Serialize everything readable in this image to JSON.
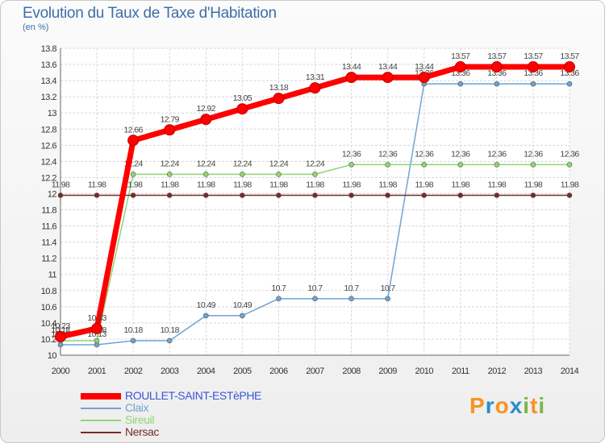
{
  "header": {
    "title": "Evolution du Taux de Taxe d'Habitation",
    "subtitle": "(en %)"
  },
  "logo": {
    "text": "Proxiti",
    "colors": [
      "#f7941d",
      "#2b8ec7",
      "#f7941d",
      "#2b8ec7",
      "#7ab648",
      "#f7941d",
      "#7ab648"
    ]
  },
  "chart_data": {
    "type": "line",
    "title": "Evolution du Taux de Taxe d'Habitation",
    "ylabel": "(en %)",
    "xlabel": "",
    "x": [
      2000,
      2001,
      2002,
      2003,
      2004,
      2005,
      2006,
      2007,
      2008,
      2009,
      2010,
      2011,
      2012,
      2013,
      2014
    ],
    "ylim": [
      10,
      13.8
    ],
    "yticks": [
      10,
      10.2,
      10.4,
      10.6,
      10.8,
      11,
      11.2,
      11.4,
      11.6,
      11.8,
      12,
      12.2,
      12.4,
      12.6,
      12.8,
      13,
      13.2,
      13.4,
      13.6,
      13.8
    ],
    "grid": true,
    "legend_position": "bottom-left",
    "series": [
      {
        "name": "ROULLET-SAINT-ESTèPHE",
        "color": "#ff0000",
        "emphasis": true,
        "values": [
          10.23,
          10.33,
          12.66,
          12.79,
          12.92,
          13.05,
          13.18,
          13.31,
          13.44,
          13.44,
          13.44,
          13.57,
          13.57,
          13.57,
          13.57
        ]
      },
      {
        "name": "Claix",
        "color": "#6ea3d5",
        "emphasis": false,
        "values": [
          10.13,
          10.13,
          10.18,
          10.18,
          10.49,
          10.49,
          10.7,
          10.7,
          10.7,
          10.7,
          13.36,
          13.36,
          13.36,
          13.36,
          13.36
        ]
      },
      {
        "name": "Sireuil",
        "color": "#8fd672",
        "emphasis": false,
        "values": [
          10.18,
          10.18,
          12.24,
          12.24,
          12.24,
          12.24,
          12.24,
          12.24,
          12.36,
          12.36,
          12.36,
          12.36,
          12.36,
          12.36,
          12.36
        ]
      },
      {
        "name": "Nersac",
        "color": "#7a2a2a",
        "emphasis": false,
        "values": [
          11.98,
          11.98,
          11.98,
          11.98,
          11.98,
          11.98,
          11.98,
          11.98,
          11.98,
          11.98,
          11.98,
          11.98,
          11.98,
          11.98,
          11.98
        ]
      }
    ]
  }
}
